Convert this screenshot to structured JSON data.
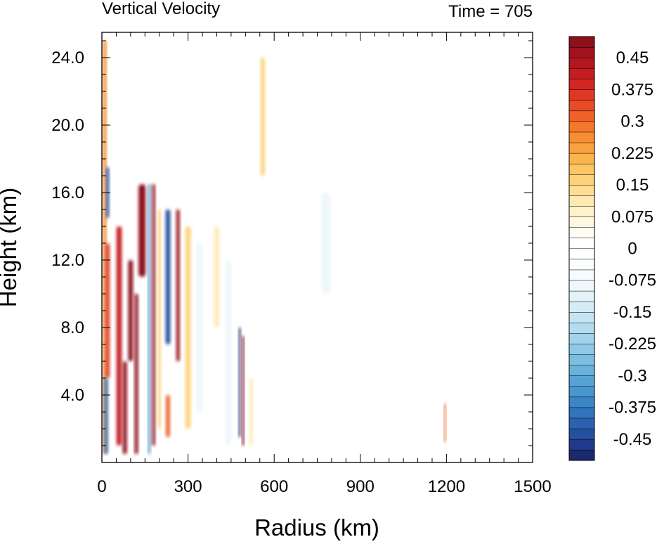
{
  "chart_data": {
    "type": "heatmap",
    "title": "Vertical Velocity",
    "subtitle": "Time = 705",
    "xlabel": "Radius (km)",
    "ylabel": "Height (km)",
    "xlim": [
      0,
      1500
    ],
    "ylim": [
      0,
      25.5
    ],
    "xticks": [
      0,
      300,
      600,
      900,
      1200,
      1500
    ],
    "xtick_labels": [
      "0",
      "300",
      "600",
      "900",
      "1200",
      "1500"
    ],
    "yticks": [
      4,
      8,
      12,
      16,
      20,
      24
    ],
    "ytick_labels": [
      "4.0",
      "8.0",
      "12.0",
      "16.0",
      "20.0",
      "24.0"
    ],
    "colorbar": {
      "levels": [
        -0.5,
        -0.475,
        -0.45,
        -0.425,
        -0.4,
        -0.375,
        -0.35,
        -0.325,
        -0.3,
        -0.275,
        -0.25,
        -0.225,
        -0.2,
        -0.175,
        -0.15,
        -0.125,
        -0.1,
        -0.075,
        -0.05,
        -0.025,
        0,
        0.025,
        0.05,
        0.075,
        0.1,
        0.125,
        0.15,
        0.175,
        0.2,
        0.225,
        0.25,
        0.275,
        0.3,
        0.325,
        0.35,
        0.375,
        0.4,
        0.425,
        0.45,
        0.475,
        0.5
      ],
      "labels": [
        "0.45",
        "0.375",
        "0.3",
        "0.225",
        "0.15",
        "0.075",
        "0",
        "-0.075",
        "-0.15",
        "-0.225",
        "-0.3",
        "-0.375",
        "-0.45"
      ],
      "label_values": [
        0.45,
        0.375,
        0.3,
        0.225,
        0.15,
        0.075,
        0,
        -0.075,
        -0.15,
        -0.225,
        -0.3,
        -0.375,
        -0.45
      ],
      "colors": [
        "#1a2a6c",
        "#1f3a8a",
        "#2450a0",
        "#2a62b0",
        "#3274bd",
        "#3b85c6",
        "#4896cf",
        "#56a4d6",
        "#68b2dc",
        "#7bbee2",
        "#8fc9e7",
        "#a2d3eb",
        "#b4dcef",
        "#c5e4f3",
        "#d5ecf6",
        "#e3f2f9",
        "#eef7fb",
        "#f6fbfd",
        "#fbfdfe",
        "#ffffff",
        "#ffffff",
        "#fffdf3",
        "#fff8e1",
        "#fff1c8",
        "#ffe9b0",
        "#ffde94",
        "#fed27a",
        "#fdc563",
        "#fcb54e",
        "#faa23f",
        "#f78e33",
        "#f4782c",
        "#ef6128",
        "#e84b26",
        "#df3724",
        "#d32622",
        "#c51c21",
        "#b3161f",
        "#a0121d",
        "#8c0f1a"
      ]
    },
    "features": [
      {
        "r": 10,
        "z0": 0.5,
        "z1": 25,
        "w": 0.25,
        "width_km": 12
      },
      {
        "r": 20,
        "z0": 14.5,
        "z1": 17.5,
        "w": -0.45,
        "width_km": 10
      },
      {
        "r": 20,
        "z0": 5,
        "z1": 13,
        "w": 0.35,
        "width_km": 14
      },
      {
        "r": 15,
        "z0": 0.5,
        "z1": 5,
        "w": -0.4,
        "width_km": 12
      },
      {
        "r": 60,
        "z0": 1,
        "z1": 14,
        "w": 0.4,
        "width_km": 18
      },
      {
        "r": 80,
        "z0": 0.5,
        "z1": 6,
        "w": 0.5,
        "width_km": 14
      },
      {
        "r": 100,
        "z0": 6,
        "z1": 12,
        "w": 0.5,
        "width_km": 16
      },
      {
        "r": 120,
        "z0": 0.5,
        "z1": 10,
        "w": 0.5,
        "width_km": 12
      },
      {
        "r": 140,
        "z0": 11,
        "z1": 16.5,
        "w": 0.5,
        "width_km": 24
      },
      {
        "r": 165,
        "z0": 0.5,
        "z1": 16.5,
        "w": -0.35,
        "width_km": 8
      },
      {
        "r": 180,
        "z0": 1,
        "z1": 16.5,
        "w": 0.5,
        "width_km": 10
      },
      {
        "r": 200,
        "z0": 2,
        "z1": 15,
        "w": 0.15,
        "width_km": 10
      },
      {
        "r": 230,
        "z0": 7,
        "z1": 15,
        "w": -0.45,
        "width_km": 16
      },
      {
        "r": 230,
        "z0": 1.5,
        "z1": 4,
        "w": 0.3,
        "width_km": 14
      },
      {
        "r": 265,
        "z0": 6,
        "z1": 15,
        "w": 0.45,
        "width_km": 12
      },
      {
        "r": 300,
        "z0": 2,
        "z1": 14,
        "w": 0.15,
        "width_km": 18
      },
      {
        "r": 340,
        "z0": 3,
        "z1": 13,
        "w": -0.1,
        "width_km": 20
      },
      {
        "r": 400,
        "z0": 8,
        "z1": 14,
        "w": 0.12,
        "width_km": 16
      },
      {
        "r": 440,
        "z0": 1,
        "z1": 12,
        "w": -0.1,
        "width_km": 18
      },
      {
        "r": 480,
        "z0": 1.5,
        "z1": 8,
        "w": -0.5,
        "width_km": 7
      },
      {
        "r": 492,
        "z0": 1,
        "z1": 7.5,
        "w": 0.5,
        "width_km": 7
      },
      {
        "r": 520,
        "z0": 1,
        "z1": 5,
        "w": 0.12,
        "width_km": 10
      },
      {
        "r": 560,
        "z0": 17,
        "z1": 24,
        "w": 0.15,
        "width_km": 14
      },
      {
        "r": 780,
        "z0": 10,
        "z1": 16,
        "w": -0.08,
        "width_km": 30
      },
      {
        "r": 1195,
        "z0": 1.2,
        "z1": 3.5,
        "w": 0.3,
        "width_km": 6
      }
    ]
  }
}
